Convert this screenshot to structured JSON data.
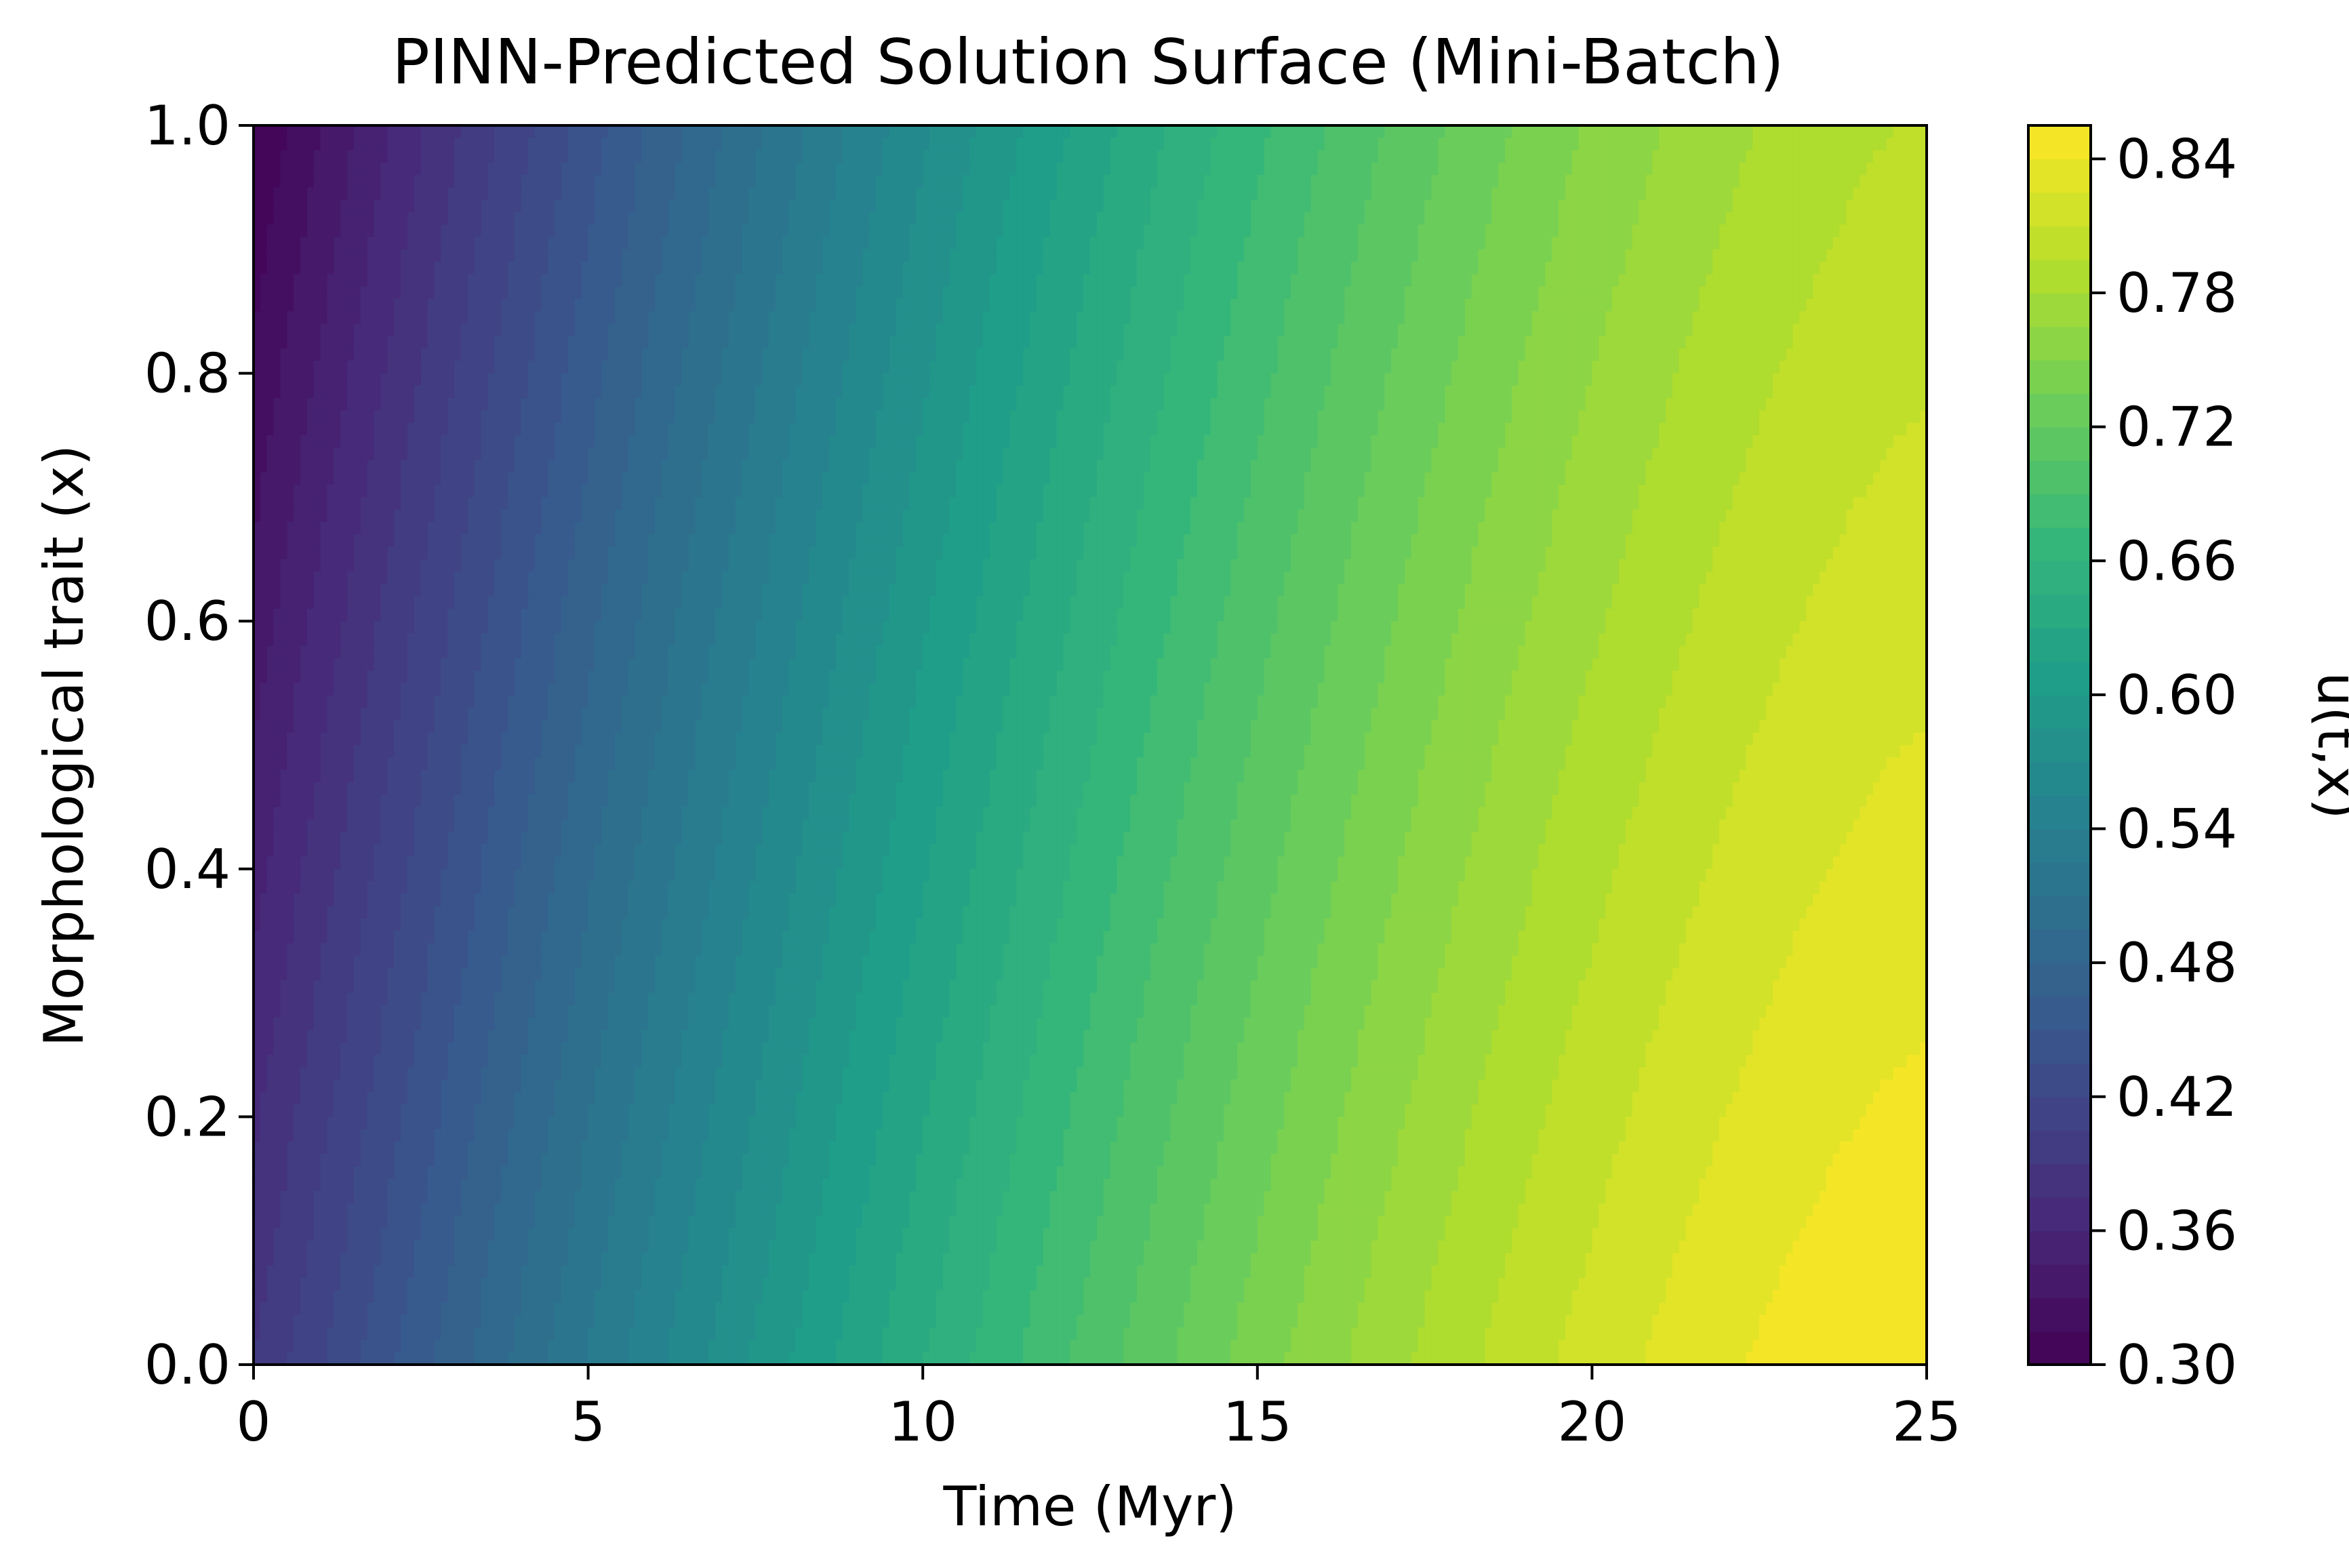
{
  "chart_data": {
    "type": "heatmap",
    "subtype": "filled-contour",
    "title": "PINN-Predicted Solution Surface (Mini-Batch)",
    "xlabel": "Time (Myr)",
    "ylabel": "Morphological trait (x)",
    "xlim": [
      0,
      25
    ],
    "ylim": [
      0.0,
      1.0
    ],
    "xticks": [
      0,
      5,
      10,
      15,
      20,
      25
    ],
    "yticks": [
      0.0,
      0.2,
      0.4,
      0.6,
      0.8,
      1.0
    ],
    "colormap": "viridis",
    "colorbar": {
      "label": "u(t,x)",
      "range": [
        0.3,
        0.855
      ],
      "levels_step": 0.015,
      "ticks": [
        0.3,
        0.36,
        0.42,
        0.48,
        0.54,
        0.6,
        0.66,
        0.72,
        0.78,
        0.84
      ]
    },
    "value_samples": [
      {
        "t": 0,
        "x": 1.0,
        "u": 0.3
      },
      {
        "t": 0,
        "x": 0.0,
        "u": 0.39
      },
      {
        "t": 5,
        "x": 0.0,
        "u": 0.51
      },
      {
        "t": 10,
        "x": 0.0,
        "u": 0.63
      },
      {
        "t": 15,
        "x": 0.0,
        "u": 0.72
      },
      {
        "t": 20,
        "x": 0.0,
        "u": 0.79
      },
      {
        "t": 25,
        "x": 0.0,
        "u": 0.855
      },
      {
        "t": 25,
        "x": 1.0,
        "u": 0.8
      },
      {
        "t": 12.5,
        "x": 1.0,
        "u": 0.59
      }
    ]
  }
}
